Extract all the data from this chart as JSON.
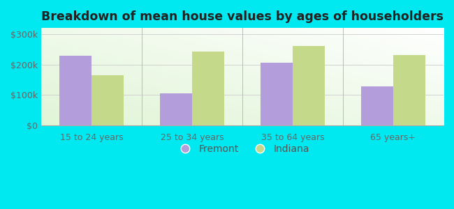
{
  "categories": [
    "15 to 24 years",
    "25 to 34 years",
    "35 to 64 years",
    "65 years+"
  ],
  "fremont": [
    228000,
    105000,
    205000,
    128000
  ],
  "indiana": [
    165000,
    243000,
    260000,
    232000
  ],
  "fremont_color": "#b39ddb",
  "indiana_color": "#c5d98a",
  "background_outer": "#00e8f0",
  "title": "Breakdown of mean house values by ages of householders",
  "title_fontsize": 12.5,
  "ylabel_ticks": [
    0,
    100000,
    200000,
    300000
  ],
  "ylabel_labels": [
    "$0",
    "$100k",
    "$200k",
    "$300k"
  ],
  "ylim": [
    0,
    320000
  ],
  "legend_labels": [
    "Fremont",
    "Indiana"
  ],
  "bar_width": 0.32
}
